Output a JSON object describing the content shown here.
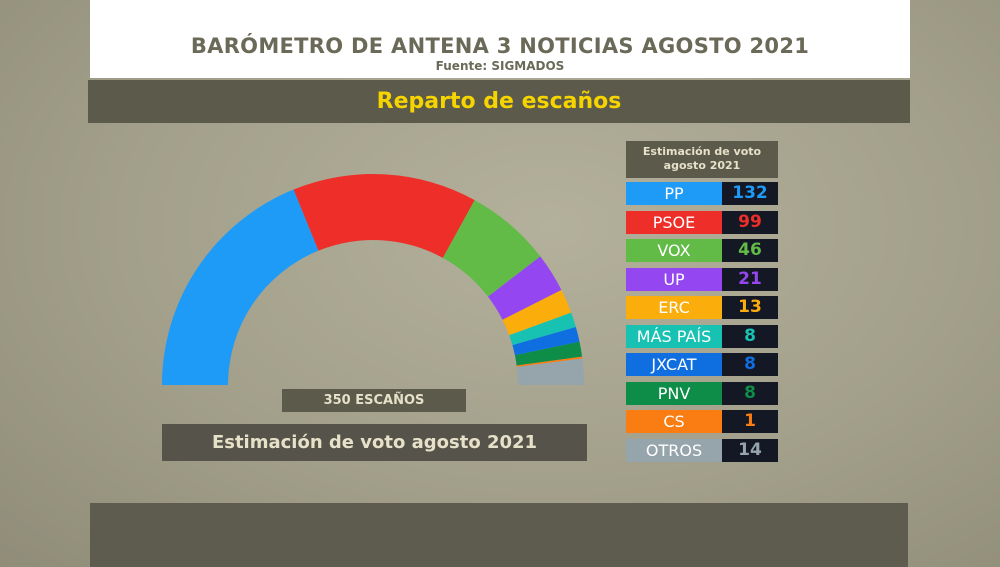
{
  "header": {
    "title": "BARÓMETRO DE ANTENA 3 NOTICIAS AGOSTO 2021",
    "source": "Fuente: SIGMADOS"
  },
  "subtitle": "Reparto de escaños",
  "chart_data": {
    "type": "pie",
    "variant": "parliament-semicircle",
    "total_label": "350 ESCAÑOS",
    "caption": "Estimación de voto agosto 2021",
    "table_header": "Estimación de voto agosto 2021",
    "categories": [
      "PP",
      "PSOE",
      "VOX",
      "UP",
      "ERC",
      "MÁS PAÍS",
      "JXCAT",
      "PNV",
      "CS",
      "OTROS"
    ],
    "values": [
      132,
      99,
      46,
      21,
      13,
      8,
      8,
      8,
      1,
      14
    ],
    "colors": [
      "#1e9bf7",
      "#ee2e28",
      "#62bb47",
      "#9447f0",
      "#fbad0b",
      "#18c2b3",
      "#0f6ee0",
      "#0d8d47",
      "#f97d12",
      "#96a4ab"
    ]
  }
}
